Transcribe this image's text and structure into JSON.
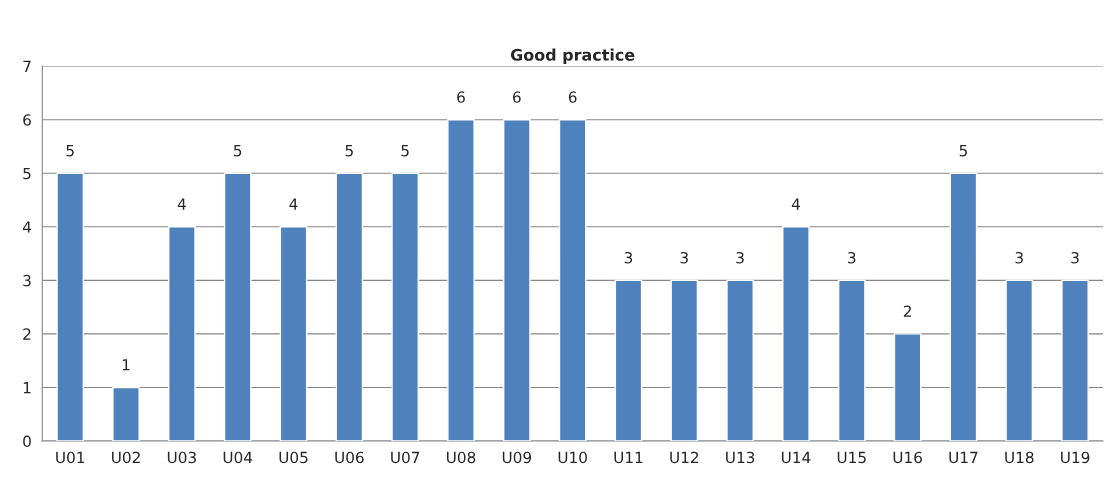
{
  "chart_data": {
    "type": "bar",
    "title": "Good practice",
    "categories": [
      "U01",
      "U02",
      "U03",
      "U04",
      "U05",
      "U06",
      "U07",
      "U08",
      "U09",
      "U10",
      "U11",
      "U12",
      "U13",
      "U14",
      "U15",
      "U16",
      "U17",
      "U18",
      "U19"
    ],
    "values": [
      5,
      1,
      4,
      5,
      4,
      5,
      5,
      6,
      6,
      6,
      3,
      3,
      3,
      4,
      3,
      2,
      5,
      3,
      3
    ],
    "color": "#4f81bd",
    "ylim": [
      0,
      7
    ],
    "yticks": [
      0,
      1,
      2,
      3,
      4,
      5,
      6,
      7
    ],
    "grid": "y",
    "data_labels": true,
    "legend": false
  }
}
